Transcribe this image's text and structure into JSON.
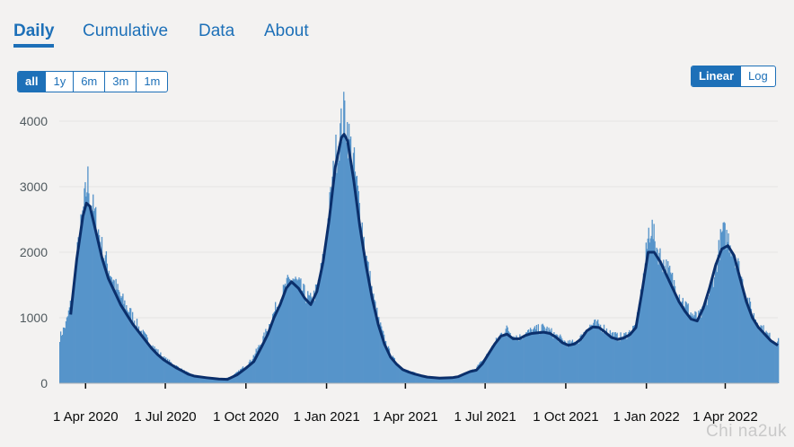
{
  "tabs": [
    {
      "label": "Daily",
      "active": true
    },
    {
      "label": "Cumulative",
      "active": false
    },
    {
      "label": "Data",
      "active": false
    },
    {
      "label": "About",
      "active": false
    }
  ],
  "range_buttons": [
    {
      "label": "all",
      "active": true
    },
    {
      "label": "1y",
      "active": false
    },
    {
      "label": "6m",
      "active": false
    },
    {
      "label": "3m",
      "active": false
    },
    {
      "label": "1m",
      "active": false
    }
  ],
  "scale_buttons": [
    {
      "label": "Linear",
      "active": true
    },
    {
      "label": "Log",
      "active": false
    }
  ],
  "watermark": "Chi na2uk",
  "colors": {
    "accent": "#1d70b8",
    "bar": "#5694ca",
    "bar_highlight": "#4a8abf",
    "average_line": "#0b2f6b",
    "grid": "#e4e4e4",
    "background": "#f3f2f1"
  },
  "chart_data": {
    "type": "bar",
    "title": "",
    "xlabel": "",
    "ylabel": "",
    "ylim": [
      0,
      4000
    ],
    "yticks": [
      0,
      1000,
      2000,
      3000,
      4000
    ],
    "grid": true,
    "x_range": [
      "2020-03-02",
      "2022-05-31"
    ],
    "xticks": [
      {
        "date": "2020-04-01",
        "label": "1 Apr 2020"
      },
      {
        "date": "2020-07-01",
        "label": "1 Jul 2020"
      },
      {
        "date": "2020-10-01",
        "label": "1 Oct 2020"
      },
      {
        "date": "2021-01-01",
        "label": "1 Jan 2021"
      },
      {
        "date": "2021-04-01",
        "label": "1 Apr 2021"
      },
      {
        "date": "2021-07-01",
        "label": "1 Jul 2021"
      },
      {
        "date": "2021-10-01",
        "label": "1 Oct 2021"
      },
      {
        "date": "2022-01-01",
        "label": "1 Jan 2022"
      },
      {
        "date": "2022-04-01",
        "label": "1 Apr 2022"
      }
    ],
    "series": [
      {
        "kind": "bars",
        "points": [
          [
            "2020-03-02",
            700
          ],
          [
            "2020-03-09",
            900
          ],
          [
            "2020-03-16",
            1300
          ],
          [
            "2020-03-23",
            2100
          ],
          [
            "2020-03-30",
            2750
          ],
          [
            "2020-04-03",
            3100
          ],
          [
            "2020-04-06",
            2800
          ],
          [
            "2020-04-13",
            2450
          ],
          [
            "2020-04-20",
            2000
          ],
          [
            "2020-04-27",
            1750
          ],
          [
            "2020-05-04",
            1500
          ],
          [
            "2020-05-11",
            1300
          ],
          [
            "2020-05-18",
            1150
          ],
          [
            "2020-05-25",
            1000
          ],
          [
            "2020-06-01",
            820
          ],
          [
            "2020-06-08",
            700
          ],
          [
            "2020-06-15",
            580
          ],
          [
            "2020-06-22",
            480
          ],
          [
            "2020-06-29",
            380
          ],
          [
            "2020-07-06",
            320
          ],
          [
            "2020-07-13",
            260
          ],
          [
            "2020-07-20",
            200
          ],
          [
            "2020-07-27",
            150
          ],
          [
            "2020-08-03",
            120
          ],
          [
            "2020-08-10",
            100
          ],
          [
            "2020-08-17",
            90
          ],
          [
            "2020-08-24",
            80
          ],
          [
            "2020-08-31",
            70
          ],
          [
            "2020-09-07",
            80
          ],
          [
            "2020-09-14",
            100
          ],
          [
            "2020-09-21",
            170
          ],
          [
            "2020-09-28",
            250
          ],
          [
            "2020-10-05",
            330
          ],
          [
            "2020-10-12",
            480
          ],
          [
            "2020-10-19",
            650
          ],
          [
            "2020-10-26",
            850
          ],
          [
            "2020-11-02",
            1100
          ],
          [
            "2020-11-09",
            1300
          ],
          [
            "2020-11-16",
            1500
          ],
          [
            "2020-11-23",
            1600
          ],
          [
            "2020-11-30",
            1500
          ],
          [
            "2020-12-07",
            1350
          ],
          [
            "2020-12-14",
            1250
          ],
          [
            "2020-12-21",
            1450
          ],
          [
            "2020-12-28",
            1900
          ],
          [
            "2021-01-04",
            2700
          ],
          [
            "2021-01-11",
            3500
          ],
          [
            "2021-01-18",
            3950
          ],
          [
            "2021-01-21",
            4150
          ],
          [
            "2021-01-25",
            3800
          ],
          [
            "2021-02-01",
            3300
          ],
          [
            "2021-02-08",
            2600
          ],
          [
            "2021-02-15",
            1900
          ],
          [
            "2021-02-22",
            1350
          ],
          [
            "2021-03-01",
            950
          ],
          [
            "2021-03-08",
            650
          ],
          [
            "2021-03-15",
            420
          ],
          [
            "2021-03-22",
            300
          ],
          [
            "2021-03-29",
            220
          ],
          [
            "2021-04-05",
            180
          ],
          [
            "2021-04-12",
            150
          ],
          [
            "2021-04-19",
            120
          ],
          [
            "2021-04-26",
            100
          ],
          [
            "2021-05-03",
            95
          ],
          [
            "2021-05-10",
            85
          ],
          [
            "2021-05-17",
            90
          ],
          [
            "2021-05-24",
            100
          ],
          [
            "2021-05-31",
            110
          ],
          [
            "2021-06-07",
            140
          ],
          [
            "2021-06-14",
            180
          ],
          [
            "2021-06-21",
            250
          ],
          [
            "2021-06-28",
            350
          ],
          [
            "2021-07-05",
            480
          ],
          [
            "2021-07-12",
            620
          ],
          [
            "2021-07-19",
            760
          ],
          [
            "2021-07-26",
            830
          ],
          [
            "2021-08-02",
            720
          ],
          [
            "2021-08-09",
            700
          ],
          [
            "2021-08-16",
            760
          ],
          [
            "2021-08-23",
            800
          ],
          [
            "2021-08-30",
            820
          ],
          [
            "2021-09-06",
            850
          ],
          [
            "2021-09-13",
            780
          ],
          [
            "2021-09-20",
            720
          ],
          [
            "2021-09-27",
            650
          ],
          [
            "2021-10-04",
            600
          ],
          [
            "2021-10-11",
            620
          ],
          [
            "2021-10-18",
            700
          ],
          [
            "2021-10-25",
            850
          ],
          [
            "2021-11-01",
            900
          ],
          [
            "2021-11-08",
            880
          ],
          [
            "2021-11-15",
            820
          ],
          [
            "2021-11-22",
            750
          ],
          [
            "2021-11-29",
            700
          ],
          [
            "2021-12-06",
            720
          ],
          [
            "2021-12-13",
            780
          ],
          [
            "2021-12-20",
            900
          ],
          [
            "2021-12-27",
            1500
          ],
          [
            "2022-01-03",
            2300
          ],
          [
            "2022-01-06",
            2400
          ],
          [
            "2022-01-10",
            2150
          ],
          [
            "2022-01-17",
            1900
          ],
          [
            "2022-01-24",
            1750
          ],
          [
            "2022-01-31",
            1550
          ],
          [
            "2022-02-07",
            1350
          ],
          [
            "2022-02-14",
            1200
          ],
          [
            "2022-02-21",
            1050
          ],
          [
            "2022-02-28",
            1000
          ],
          [
            "2022-03-07",
            1100
          ],
          [
            "2022-03-14",
            1400
          ],
          [
            "2022-03-21",
            1800
          ],
          [
            "2022-03-28",
            2300
          ],
          [
            "2022-04-04",
            2200
          ],
          [
            "2022-04-11",
            2000
          ],
          [
            "2022-04-18",
            1650
          ],
          [
            "2022-04-25",
            1300
          ],
          [
            "2022-05-02",
            1050
          ],
          [
            "2022-05-09",
            900
          ],
          [
            "2022-05-16",
            780
          ],
          [
            "2022-05-23",
            680
          ],
          [
            "2022-05-31",
            630
          ]
        ]
      },
      {
        "kind": "line",
        "points": [
          [
            "2020-03-15",
            1050
          ],
          [
            "2020-03-22",
            1900
          ],
          [
            "2020-03-29",
            2550
          ],
          [
            "2020-04-02",
            2750
          ],
          [
            "2020-04-06",
            2700
          ],
          [
            "2020-04-13",
            2300
          ],
          [
            "2020-04-20",
            1900
          ],
          [
            "2020-04-27",
            1600
          ],
          [
            "2020-05-04",
            1400
          ],
          [
            "2020-05-11",
            1200
          ],
          [
            "2020-05-18",
            1050
          ],
          [
            "2020-05-25",
            900
          ],
          [
            "2020-06-01",
            780
          ],
          [
            "2020-06-08",
            660
          ],
          [
            "2020-06-15",
            540
          ],
          [
            "2020-06-22",
            440
          ],
          [
            "2020-06-29",
            360
          ],
          [
            "2020-07-06",
            300
          ],
          [
            "2020-07-13",
            240
          ],
          [
            "2020-07-20",
            190
          ],
          [
            "2020-07-27",
            140
          ],
          [
            "2020-08-03",
            110
          ],
          [
            "2020-08-17",
            85
          ],
          [
            "2020-08-31",
            65
          ],
          [
            "2020-09-10",
            60
          ],
          [
            "2020-09-21",
            130
          ],
          [
            "2020-10-01",
            230
          ],
          [
            "2020-10-10",
            330
          ],
          [
            "2020-10-19",
            560
          ],
          [
            "2020-10-26",
            750
          ],
          [
            "2020-11-02",
            1000
          ],
          [
            "2020-11-09",
            1200
          ],
          [
            "2020-11-16",
            1450
          ],
          [
            "2020-11-22",
            1550
          ],
          [
            "2020-11-30",
            1450
          ],
          [
            "2020-12-07",
            1300
          ],
          [
            "2020-12-14",
            1200
          ],
          [
            "2020-12-21",
            1400
          ],
          [
            "2020-12-28",
            1850
          ],
          [
            "2021-01-04",
            2500
          ],
          [
            "2021-01-11",
            3300
          ],
          [
            "2021-01-18",
            3750
          ],
          [
            "2021-01-21",
            3800
          ],
          [
            "2021-01-25",
            3700
          ],
          [
            "2021-02-01",
            3100
          ],
          [
            "2021-02-08",
            2400
          ],
          [
            "2021-02-15",
            1800
          ],
          [
            "2021-02-22",
            1300
          ],
          [
            "2021-03-01",
            900
          ],
          [
            "2021-03-08",
            600
          ],
          [
            "2021-03-15",
            400
          ],
          [
            "2021-03-22",
            290
          ],
          [
            "2021-03-29",
            210
          ],
          [
            "2021-04-05",
            170
          ],
          [
            "2021-04-12",
            140
          ],
          [
            "2021-04-19",
            115
          ],
          [
            "2021-04-26",
            95
          ],
          [
            "2021-05-10",
            80
          ],
          [
            "2021-05-24",
            85
          ],
          [
            "2021-05-31",
            100
          ],
          [
            "2021-06-07",
            140
          ],
          [
            "2021-06-14",
            180
          ],
          [
            "2021-06-21",
            200
          ],
          [
            "2021-06-28",
            300
          ],
          [
            "2021-07-05",
            450
          ],
          [
            "2021-07-12",
            600
          ],
          [
            "2021-07-19",
            720
          ],
          [
            "2021-07-26",
            750
          ],
          [
            "2021-08-02",
            680
          ],
          [
            "2021-08-09",
            680
          ],
          [
            "2021-08-16",
            730
          ],
          [
            "2021-08-23",
            760
          ],
          [
            "2021-08-30",
            770
          ],
          [
            "2021-09-06",
            780
          ],
          [
            "2021-09-13",
            760
          ],
          [
            "2021-09-20",
            700
          ],
          [
            "2021-09-27",
            620
          ],
          [
            "2021-10-04",
            580
          ],
          [
            "2021-10-11",
            600
          ],
          [
            "2021-10-18",
            670
          ],
          [
            "2021-10-25",
            800
          ],
          [
            "2021-11-01",
            860
          ],
          [
            "2021-11-08",
            850
          ],
          [
            "2021-11-15",
            780
          ],
          [
            "2021-11-22",
            700
          ],
          [
            "2021-11-29",
            670
          ],
          [
            "2021-12-06",
            690
          ],
          [
            "2021-12-13",
            740
          ],
          [
            "2021-12-20",
            850
          ],
          [
            "2021-12-27",
            1400
          ],
          [
            "2022-01-03",
            2000
          ],
          [
            "2022-01-10",
            2000
          ],
          [
            "2022-01-17",
            1850
          ],
          [
            "2022-01-24",
            1650
          ],
          [
            "2022-01-31",
            1450
          ],
          [
            "2022-02-07",
            1250
          ],
          [
            "2022-02-14",
            1100
          ],
          [
            "2022-02-21",
            980
          ],
          [
            "2022-02-28",
            950
          ],
          [
            "2022-03-07",
            1150
          ],
          [
            "2022-03-14",
            1450
          ],
          [
            "2022-03-21",
            1800
          ],
          [
            "2022-03-28",
            2050
          ],
          [
            "2022-04-04",
            2100
          ],
          [
            "2022-04-11",
            1950
          ],
          [
            "2022-04-18",
            1600
          ],
          [
            "2022-04-25",
            1250
          ],
          [
            "2022-05-02",
            1000
          ],
          [
            "2022-05-09",
            850
          ],
          [
            "2022-05-16",
            750
          ],
          [
            "2022-05-23",
            650
          ],
          [
            "2022-05-31",
            580
          ]
        ]
      }
    ]
  }
}
